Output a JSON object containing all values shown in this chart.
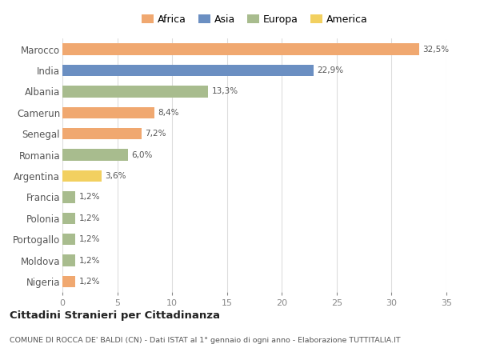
{
  "categories": [
    "Marocco",
    "India",
    "Albania",
    "Camerun",
    "Senegal",
    "Romania",
    "Argentina",
    "Francia",
    "Polonia",
    "Portogallo",
    "Moldova",
    "Nigeria"
  ],
  "values": [
    32.5,
    22.9,
    13.3,
    8.4,
    7.2,
    6.0,
    3.6,
    1.2,
    1.2,
    1.2,
    1.2,
    1.2
  ],
  "labels": [
    "32,5%",
    "22,9%",
    "13,3%",
    "8,4%",
    "7,2%",
    "6,0%",
    "3,6%",
    "1,2%",
    "1,2%",
    "1,2%",
    "1,2%",
    "1,2%"
  ],
  "colors": [
    "#F0A870",
    "#6B8FC2",
    "#A8BC8E",
    "#F0A870",
    "#F0A870",
    "#A8BC8E",
    "#F2D060",
    "#A8BC8E",
    "#A8BC8E",
    "#A8BC8E",
    "#A8BC8E",
    "#F0A870"
  ],
  "legend_labels": [
    "Africa",
    "Asia",
    "Europa",
    "America"
  ],
  "legend_colors": [
    "#F0A870",
    "#6B8FC2",
    "#A8BC8E",
    "#F2D060"
  ],
  "title": "Cittadini Stranieri per Cittadinanza",
  "subtitle": "COMUNE DI ROCCA DE' BALDI (CN) - Dati ISTAT al 1° gennaio di ogni anno - Elaborazione TUTTITALIA.IT",
  "xlim": [
    0,
    35
  ],
  "xticks": [
    0,
    5,
    10,
    15,
    20,
    25,
    30,
    35
  ],
  "background_color": "#ffffff",
  "grid_color": "#dddddd",
  "bar_height": 0.55
}
